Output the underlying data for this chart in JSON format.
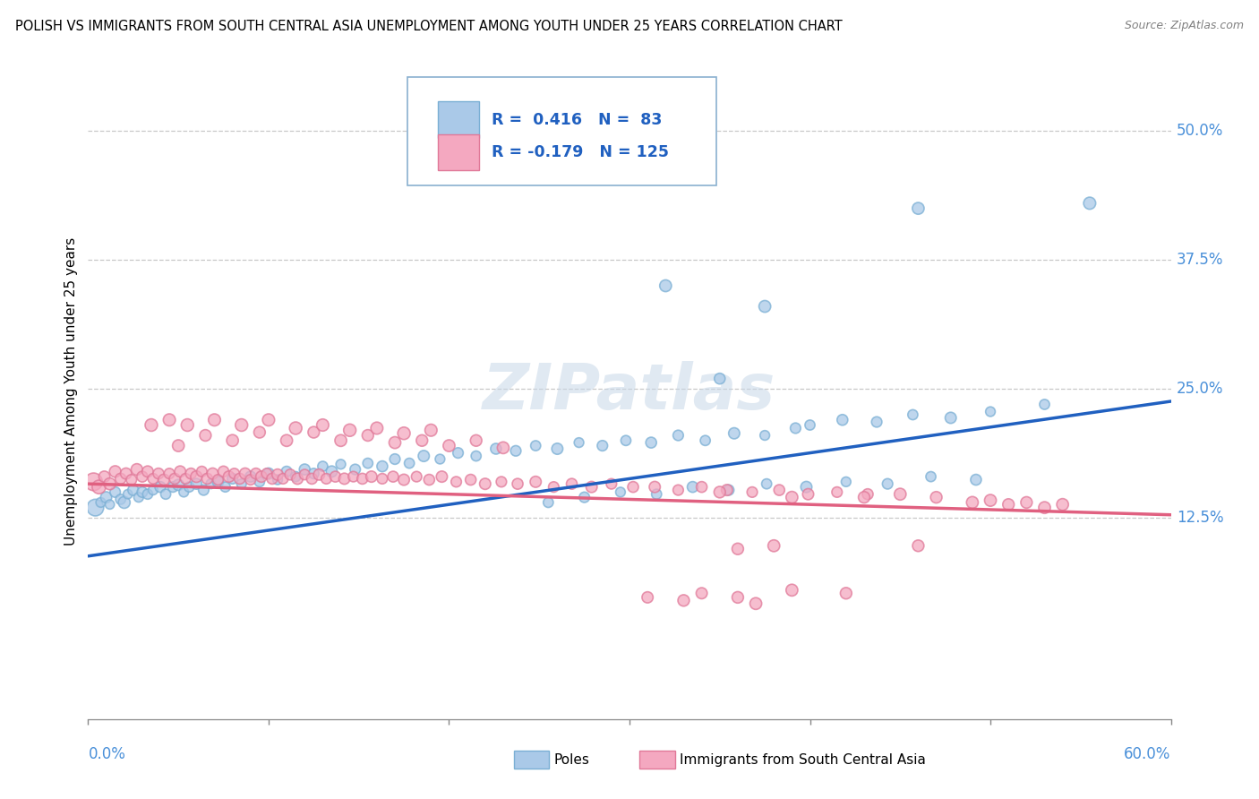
{
  "title": "POLISH VS IMMIGRANTS FROM SOUTH CENTRAL ASIA UNEMPLOYMENT AMONG YOUTH UNDER 25 YEARS CORRELATION CHART",
  "source": "Source: ZipAtlas.com",
  "ylabel": "Unemployment Among Youth under 25 years",
  "ytick_labels": [
    "12.5%",
    "25.0%",
    "37.5%",
    "50.0%"
  ],
  "ytick_values": [
    0.125,
    0.25,
    0.375,
    0.5
  ],
  "xlim": [
    0.0,
    0.6
  ],
  "ylim": [
    -0.07,
    0.565
  ],
  "poles_color": "#aac9e8",
  "poles_color_edge": "#7aafd4",
  "immigrants_color": "#f4a8c0",
  "immigrants_color_edge": "#e07898",
  "blue_line": [
    0.0,
    0.088,
    0.6,
    0.238
  ],
  "pink_line": [
    0.0,
    0.158,
    0.6,
    0.128
  ],
  "watermark_text": "ZIPatlas",
  "poles_data": [
    [
      0.004,
      0.135,
      180
    ],
    [
      0.007,
      0.14,
      60
    ],
    [
      0.01,
      0.145,
      80
    ],
    [
      0.012,
      0.138,
      55
    ],
    [
      0.015,
      0.15,
      70
    ],
    [
      0.018,
      0.143,
      65
    ],
    [
      0.02,
      0.14,
      90
    ],
    [
      0.022,
      0.148,
      55
    ],
    [
      0.025,
      0.152,
      75
    ],
    [
      0.028,
      0.145,
      60
    ],
    [
      0.03,
      0.15,
      70
    ],
    [
      0.033,
      0.148,
      65
    ],
    [
      0.036,
      0.152,
      60
    ],
    [
      0.04,
      0.155,
      75
    ],
    [
      0.043,
      0.148,
      65
    ],
    [
      0.047,
      0.155,
      70
    ],
    [
      0.05,
      0.157,
      80
    ],
    [
      0.053,
      0.15,
      60
    ],
    [
      0.056,
      0.155,
      65
    ],
    [
      0.06,
      0.158,
      75
    ],
    [
      0.064,
      0.152,
      70
    ],
    [
      0.068,
      0.158,
      60
    ],
    [
      0.072,
      0.16,
      80
    ],
    [
      0.076,
      0.155,
      65
    ],
    [
      0.08,
      0.163,
      70
    ],
    [
      0.085,
      0.158,
      60
    ],
    [
      0.09,
      0.165,
      75
    ],
    [
      0.095,
      0.16,
      65
    ],
    [
      0.1,
      0.168,
      80
    ],
    [
      0.105,
      0.162,
      60
    ],
    [
      0.11,
      0.17,
      70
    ],
    [
      0.115,
      0.165,
      65
    ],
    [
      0.12,
      0.172,
      75
    ],
    [
      0.125,
      0.168,
      70
    ],
    [
      0.13,
      0.175,
      65
    ],
    [
      0.135,
      0.17,
      80
    ],
    [
      0.14,
      0.177,
      60
    ],
    [
      0.148,
      0.172,
      70
    ],
    [
      0.155,
      0.178,
      65
    ],
    [
      0.163,
      0.175,
      75
    ],
    [
      0.17,
      0.182,
      70
    ],
    [
      0.178,
      0.178,
      65
    ],
    [
      0.186,
      0.185,
      80
    ],
    [
      0.195,
      0.182,
      60
    ],
    [
      0.205,
      0.188,
      70
    ],
    [
      0.215,
      0.185,
      65
    ],
    [
      0.226,
      0.192,
      75
    ],
    [
      0.237,
      0.19,
      70
    ],
    [
      0.248,
      0.195,
      65
    ],
    [
      0.26,
      0.192,
      80
    ],
    [
      0.272,
      0.198,
      60
    ],
    [
      0.285,
      0.195,
      70
    ],
    [
      0.298,
      0.2,
      65
    ],
    [
      0.312,
      0.198,
      75
    ],
    [
      0.327,
      0.205,
      70
    ],
    [
      0.342,
      0.2,
      65
    ],
    [
      0.358,
      0.207,
      80
    ],
    [
      0.375,
      0.205,
      60
    ],
    [
      0.392,
      0.212,
      70
    ],
    [
      0.375,
      0.33,
      90
    ],
    [
      0.4,
      0.215,
      65
    ],
    [
      0.418,
      0.22,
      75
    ],
    [
      0.437,
      0.218,
      70
    ],
    [
      0.457,
      0.225,
      65
    ],
    [
      0.478,
      0.222,
      80
    ],
    [
      0.32,
      0.35,
      90
    ],
    [
      0.5,
      0.228,
      60
    ],
    [
      0.35,
      0.26,
      75
    ],
    [
      0.255,
      0.14,
      65
    ],
    [
      0.275,
      0.145,
      70
    ],
    [
      0.295,
      0.15,
      60
    ],
    [
      0.315,
      0.148,
      65
    ],
    [
      0.335,
      0.155,
      75
    ],
    [
      0.355,
      0.152,
      70
    ],
    [
      0.376,
      0.158,
      65
    ],
    [
      0.398,
      0.155,
      80
    ],
    [
      0.42,
      0.16,
      60
    ],
    [
      0.443,
      0.158,
      70
    ],
    [
      0.467,
      0.165,
      65
    ],
    [
      0.492,
      0.162,
      75
    ],
    [
      0.46,
      0.425,
      90
    ],
    [
      0.53,
      0.235,
      65
    ],
    [
      0.555,
      0.43,
      95
    ]
  ],
  "immigrants_data": [
    [
      0.003,
      0.16,
      200
    ],
    [
      0.006,
      0.155,
      120
    ],
    [
      0.009,
      0.165,
      80
    ],
    [
      0.012,
      0.158,
      90
    ],
    [
      0.015,
      0.17,
      85
    ],
    [
      0.018,
      0.163,
      75
    ],
    [
      0.021,
      0.168,
      80
    ],
    [
      0.024,
      0.162,
      70
    ],
    [
      0.027,
      0.172,
      85
    ],
    [
      0.03,
      0.165,
      75
    ],
    [
      0.033,
      0.17,
      80
    ],
    [
      0.036,
      0.163,
      70
    ],
    [
      0.039,
      0.168,
      75
    ],
    [
      0.042,
      0.162,
      80
    ],
    [
      0.045,
      0.168,
      70
    ],
    [
      0.048,
      0.163,
      75
    ],
    [
      0.051,
      0.17,
      80
    ],
    [
      0.054,
      0.163,
      70
    ],
    [
      0.057,
      0.168,
      75
    ],
    [
      0.06,
      0.165,
      85
    ],
    [
      0.063,
      0.17,
      70
    ],
    [
      0.066,
      0.163,
      75
    ],
    [
      0.069,
      0.168,
      80
    ],
    [
      0.072,
      0.162,
      70
    ],
    [
      0.075,
      0.17,
      75
    ],
    [
      0.078,
      0.165,
      80
    ],
    [
      0.081,
      0.168,
      70
    ],
    [
      0.084,
      0.163,
      75
    ],
    [
      0.087,
      0.168,
      80
    ],
    [
      0.09,
      0.162,
      70
    ],
    [
      0.093,
      0.168,
      75
    ],
    [
      0.096,
      0.165,
      80
    ],
    [
      0.099,
      0.168,
      70
    ],
    [
      0.102,
      0.163,
      75
    ],
    [
      0.105,
      0.167,
      80
    ],
    [
      0.108,
      0.163,
      70
    ],
    [
      0.112,
      0.167,
      75
    ],
    [
      0.116,
      0.163,
      80
    ],
    [
      0.12,
      0.167,
      70
    ],
    [
      0.124,
      0.163,
      75
    ],
    [
      0.128,
      0.167,
      80
    ],
    [
      0.132,
      0.163,
      70
    ],
    [
      0.137,
      0.165,
      75
    ],
    [
      0.142,
      0.163,
      80
    ],
    [
      0.147,
      0.165,
      70
    ],
    [
      0.152,
      0.163,
      75
    ],
    [
      0.157,
      0.165,
      80
    ],
    [
      0.163,
      0.163,
      70
    ],
    [
      0.169,
      0.165,
      75
    ],
    [
      0.175,
      0.162,
      80
    ],
    [
      0.182,
      0.165,
      70
    ],
    [
      0.189,
      0.162,
      75
    ],
    [
      0.196,
      0.165,
      80
    ],
    [
      0.204,
      0.16,
      70
    ],
    [
      0.212,
      0.162,
      75
    ],
    [
      0.22,
      0.158,
      80
    ],
    [
      0.229,
      0.16,
      70
    ],
    [
      0.238,
      0.158,
      75
    ],
    [
      0.248,
      0.16,
      80
    ],
    [
      0.258,
      0.155,
      70
    ],
    [
      0.268,
      0.158,
      75
    ],
    [
      0.279,
      0.155,
      80
    ],
    [
      0.29,
      0.158,
      70
    ],
    [
      0.302,
      0.155,
      75
    ],
    [
      0.314,
      0.155,
      80
    ],
    [
      0.327,
      0.152,
      70
    ],
    [
      0.34,
      0.155,
      75
    ],
    [
      0.354,
      0.152,
      80
    ],
    [
      0.368,
      0.15,
      70
    ],
    [
      0.383,
      0.152,
      75
    ],
    [
      0.399,
      0.148,
      80
    ],
    [
      0.415,
      0.15,
      70
    ],
    [
      0.432,
      0.148,
      75
    ],
    [
      0.05,
      0.195,
      90
    ],
    [
      0.065,
      0.205,
      85
    ],
    [
      0.08,
      0.2,
      90
    ],
    [
      0.095,
      0.208,
      85
    ],
    [
      0.11,
      0.2,
      90
    ],
    [
      0.125,
      0.208,
      85
    ],
    [
      0.14,
      0.2,
      90
    ],
    [
      0.155,
      0.205,
      85
    ],
    [
      0.17,
      0.198,
      90
    ],
    [
      0.185,
      0.2,
      85
    ],
    [
      0.2,
      0.195,
      90
    ],
    [
      0.215,
      0.2,
      85
    ],
    [
      0.23,
      0.193,
      90
    ],
    [
      0.035,
      0.215,
      100
    ],
    [
      0.045,
      0.22,
      95
    ],
    [
      0.055,
      0.215,
      100
    ],
    [
      0.07,
      0.22,
      95
    ],
    [
      0.085,
      0.215,
      100
    ],
    [
      0.1,
      0.22,
      95
    ],
    [
      0.115,
      0.212,
      100
    ],
    [
      0.13,
      0.215,
      95
    ],
    [
      0.145,
      0.21,
      100
    ],
    [
      0.16,
      0.212,
      95
    ],
    [
      0.175,
      0.207,
      100
    ],
    [
      0.19,
      0.21,
      95
    ],
    [
      0.35,
      0.15,
      85
    ],
    [
      0.39,
      0.145,
      90
    ],
    [
      0.43,
      0.145,
      85
    ],
    [
      0.38,
      0.098,
      90
    ],
    [
      0.36,
      0.095,
      85
    ],
    [
      0.45,
      0.148,
      90
    ],
    [
      0.47,
      0.145,
      85
    ],
    [
      0.5,
      0.142,
      90
    ],
    [
      0.52,
      0.14,
      85
    ],
    [
      0.54,
      0.138,
      90
    ],
    [
      0.39,
      0.055,
      90
    ],
    [
      0.42,
      0.052,
      85
    ],
    [
      0.34,
      0.052,
      80
    ],
    [
      0.36,
      0.048,
      85
    ],
    [
      0.37,
      0.042,
      90
    ],
    [
      0.46,
      0.098,
      85
    ],
    [
      0.31,
      0.048,
      80
    ],
    [
      0.33,
      0.045,
      85
    ],
    [
      0.49,
      0.14,
      90
    ],
    [
      0.51,
      0.138,
      85
    ],
    [
      0.53,
      0.135,
      90
    ]
  ]
}
